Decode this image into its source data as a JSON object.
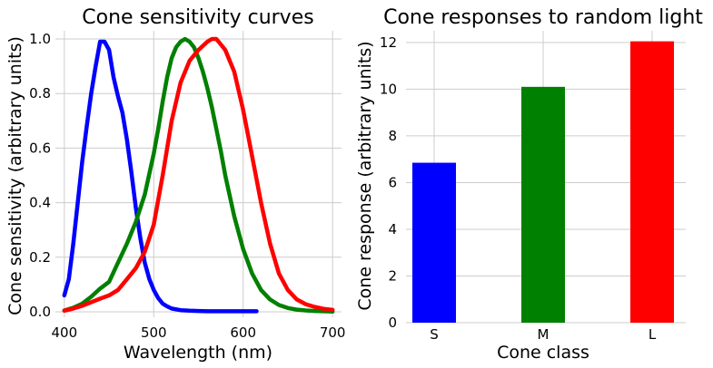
{
  "chart_data": [
    {
      "type": "line",
      "title": "Cone sensitivity curves",
      "xlabel": "Wavelength (nm)",
      "ylabel": "Cone sensitivity (arbitrary units)",
      "xlim": [
        390,
        710
      ],
      "ylim": [
        -0.02,
        1.03
      ],
      "xticks": [
        400,
        500,
        600,
        700
      ],
      "yticks": [
        0.0,
        0.2,
        0.4,
        0.6,
        0.8,
        1.0
      ],
      "xtick_labels": [
        "400",
        "500",
        "600",
        "700"
      ],
      "ytick_labels": [
        "0.0",
        "0.2",
        "0.4",
        "0.6",
        "0.8",
        "1.0"
      ],
      "grid": true,
      "series": [
        {
          "color": "#0000ff",
          "x": [
            400,
            405,
            410,
            415,
            420,
            425,
            430,
            435,
            440,
            445,
            450,
            455,
            460,
            465,
            470,
            475,
            480,
            485,
            490,
            495,
            500,
            505,
            510,
            515,
            520,
            530,
            540,
            550,
            560,
            570,
            580,
            590,
            600,
            615
          ],
          "y": [
            0.06,
            0.12,
            0.25,
            0.4,
            0.55,
            0.68,
            0.8,
            0.9,
            0.99,
            0.99,
            0.96,
            0.86,
            0.79,
            0.73,
            0.63,
            0.51,
            0.38,
            0.27,
            0.18,
            0.12,
            0.08,
            0.05,
            0.03,
            0.02,
            0.012,
            0.006,
            0.004,
            0.003,
            0.002,
            0.002,
            0.002,
            0.002,
            0.002,
            0.002
          ]
        },
        {
          "color": "#008000",
          "x": [
            400,
            410,
            420,
            430,
            440,
            450,
            460,
            470,
            480,
            490,
            500,
            505,
            510,
            515,
            520,
            525,
            530,
            535,
            540,
            545,
            550,
            555,
            560,
            565,
            570,
            575,
            580,
            590,
            600,
            610,
            620,
            630,
            640,
            650,
            660,
            670,
            680,
            690,
            700
          ],
          "y": [
            0.005,
            0.015,
            0.03,
            0.055,
            0.085,
            0.11,
            0.18,
            0.25,
            0.33,
            0.43,
            0.58,
            0.67,
            0.77,
            0.86,
            0.93,
            0.97,
            0.99,
            1.0,
            0.99,
            0.97,
            0.93,
            0.88,
            0.82,
            0.75,
            0.67,
            0.59,
            0.5,
            0.35,
            0.23,
            0.14,
            0.08,
            0.045,
            0.025,
            0.014,
            0.008,
            0.005,
            0.003,
            0.002,
            0.001
          ]
        },
        {
          "color": "#ff0000",
          "x": [
            400,
            410,
            420,
            430,
            440,
            450,
            460,
            470,
            480,
            490,
            500,
            510,
            520,
            530,
            540,
            550,
            560,
            565,
            570,
            575,
            580,
            590,
            600,
            610,
            620,
            630,
            640,
            650,
            660,
            670,
            680,
            690,
            700
          ],
          "y": [
            0.004,
            0.012,
            0.022,
            0.035,
            0.048,
            0.06,
            0.08,
            0.12,
            0.16,
            0.22,
            0.32,
            0.5,
            0.7,
            0.84,
            0.92,
            0.96,
            0.99,
            1.0,
            1.0,
            0.98,
            0.96,
            0.88,
            0.74,
            0.57,
            0.4,
            0.25,
            0.14,
            0.08,
            0.045,
            0.028,
            0.018,
            0.011,
            0.007
          ]
        }
      ]
    },
    {
      "type": "bar",
      "title": "Cone responses to random light",
      "xlabel": "Cone class",
      "ylabel": "Cone response (arbitrary units)",
      "categories": [
        "S",
        "M",
        "L"
      ],
      "values": [
        6.85,
        10.1,
        12.05
      ],
      "colors": [
        "#0000ff",
        "#008000",
        "#ff0000"
      ],
      "ylim": [
        0,
        12.5
      ],
      "yticks": [
        0,
        2,
        4,
        6,
        8,
        10,
        12
      ],
      "ytick_labels": [
        "0",
        "2",
        "4",
        "6",
        "8",
        "10",
        "12"
      ],
      "grid": true
    }
  ]
}
